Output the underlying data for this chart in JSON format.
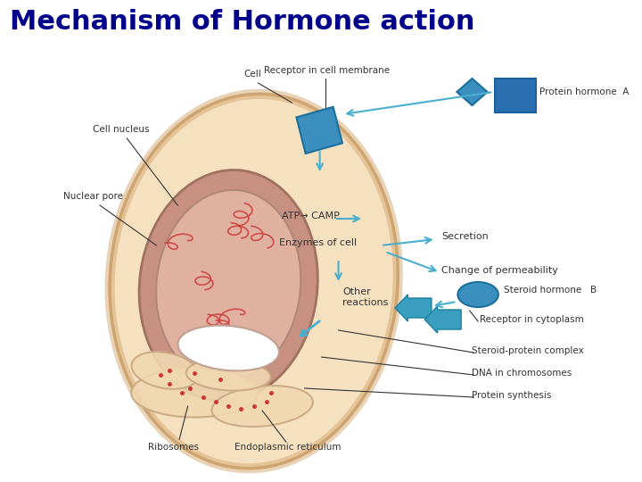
{
  "title": "Mechanism of Hormone action",
  "title_color": "#00008B",
  "title_fontsize": 22,
  "bg_color": "#ffffff",
  "arrow_color": "#4AAFCF",
  "label_color": "#333333",
  "labels": {
    "cell": "Cell",
    "receptor_membrane": "Receptor in cell membrane",
    "protein_hormone": "Protein hormone",
    "protein_hormone_letter": "A",
    "cell_nucleus": "Cell nucleus",
    "nuclear_pore": "Nuclear pore",
    "atp_camp": "ATP→ CAMP",
    "enzymes": "Enzymes of cell",
    "secretion": "Secretion",
    "permeability": "Change of permeability",
    "other": "Other\nreactions",
    "steroid_hormone": "Steroid hormone",
    "steroid_letter": "B",
    "receptor_cytoplasm": "Receptor in cytoplasm",
    "steroid_protein": "Steroid-protein complex",
    "dna": "DNA in chromosomes",
    "protein_synthesis": "Protein synthesis",
    "ribosomes": "Ribosomes",
    "endoplasmic": "Endoplasmic reticulum"
  }
}
